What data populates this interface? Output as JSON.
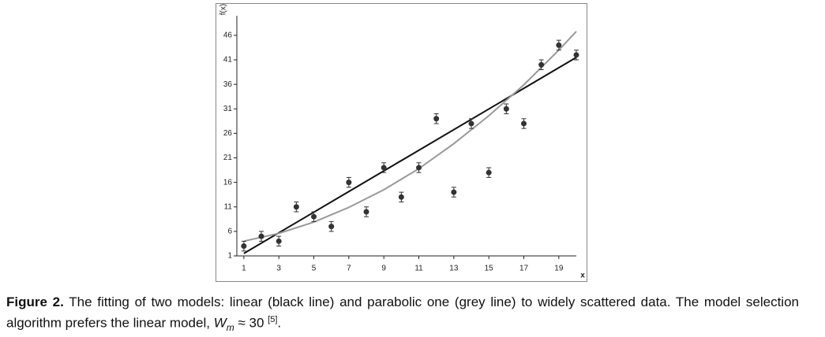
{
  "chart_data": {
    "type": "scatter",
    "y_label": "f(x)",
    "x_label": "x",
    "xlim": [
      0.6,
      20
    ],
    "ylim": [
      1,
      50
    ],
    "xticks": [
      1,
      3,
      5,
      7,
      9,
      11,
      13,
      15,
      17,
      19
    ],
    "yticks": [
      1,
      6,
      11,
      16,
      21,
      26,
      31,
      36,
      41,
      46
    ],
    "points": {
      "color": "#333333",
      "x": [
        1,
        2,
        3,
        4,
        5,
        6,
        7,
        8,
        9,
        10,
        11,
        12,
        13,
        14,
        15,
        16,
        17,
        18,
        19,
        20
      ],
      "values": [
        3,
        5,
        4,
        11,
        9,
        7,
        16,
        10,
        19,
        13,
        19,
        29,
        14,
        28,
        18,
        31,
        28,
        40,
        44,
        42
      ],
      "errors": [
        1,
        1,
        1,
        1,
        1,
        1,
        1,
        1,
        1,
        1,
        1,
        1,
        1,
        1,
        1,
        1,
        1,
        1,
        1,
        1
      ]
    },
    "fits": [
      {
        "color": "#111111",
        "x": [
          1,
          20
        ],
        "values": [
          1.5,
          41.5
        ]
      },
      {
        "color": "#999999",
        "x": [
          1,
          3,
          5,
          7,
          9,
          11,
          13,
          15,
          17,
          19,
          20
        ],
        "values": [
          4.0,
          5.6,
          7.9,
          10.9,
          14.5,
          18.8,
          23.9,
          29.6,
          35.9,
          43.0,
          46.8
        ]
      }
    ]
  },
  "caption": {
    "label": "Figure 2.",
    "text": "The fitting of two models: linear (black line) and parabolic one (grey line) to widely scattered data. The model selection algorithm prefers the linear model, ",
    "symbol": "W",
    "subscript": "m",
    "relation": "≈ 30",
    "reference": "[5]",
    "end": "."
  }
}
